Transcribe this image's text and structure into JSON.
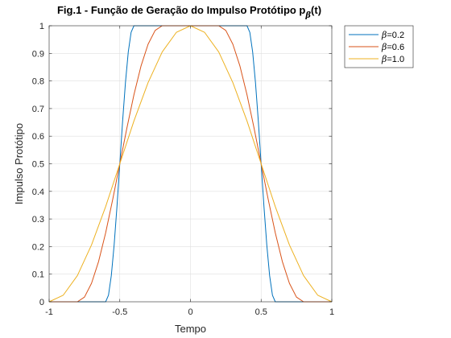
{
  "chart_data": {
    "type": "line",
    "title": "Fig.1 - Função de Geração do Impulso Protótipo p",
    "title_subscript": "β",
    "title_suffix": "(t)",
    "xlabel": "Tempo",
    "ylabel": "Impulso Protótipo",
    "xlim": [
      -1,
      1
    ],
    "ylim": [
      0,
      1
    ],
    "xticks": [
      -1,
      -0.5,
      0,
      0.5,
      1
    ],
    "xtick_labels": [
      "-1",
      "-0.5",
      "0",
      "0.5",
      "1"
    ],
    "yticks": [
      0,
      0.1,
      0.2,
      0.3,
      0.4,
      0.5,
      0.6,
      0.7,
      0.8,
      0.9,
      1
    ],
    "ytick_labels": [
      "0",
      "0.1",
      "0.2",
      "0.3",
      "0.4",
      "0.5",
      "0.6",
      "0.7",
      "0.8",
      "0.9",
      "1"
    ],
    "grid": true,
    "legend_position": "outside-top-right",
    "series": [
      {
        "name_symbol": "β",
        "name_value": "=0.2",
        "beta": 0.2,
        "color": "#0072BD",
        "x": [
          -1.0,
          -0.6,
          -0.58,
          -0.56,
          -0.54,
          -0.52,
          -0.5,
          -0.48,
          -0.46,
          -0.44,
          -0.42,
          -0.4,
          0.4,
          0.42,
          0.44,
          0.46,
          0.48,
          0.5,
          0.52,
          0.54,
          0.56,
          0.58,
          0.6,
          1.0
        ],
        "y": [
          0,
          0,
          0.024,
          0.095,
          0.206,
          0.345,
          0.5,
          0.655,
          0.794,
          0.905,
          0.976,
          1,
          1,
          0.976,
          0.905,
          0.794,
          0.655,
          0.5,
          0.345,
          0.206,
          0.095,
          0.024,
          0,
          0
        ]
      },
      {
        "name_symbol": "β",
        "name_value": "=0.6",
        "beta": 0.6,
        "color": "#D95319",
        "x": [
          -1.0,
          -0.8,
          -0.75,
          -0.7,
          -0.65,
          -0.6,
          -0.55,
          -0.5,
          -0.45,
          -0.4,
          -0.35,
          -0.3,
          -0.25,
          -0.2,
          0.2,
          0.25,
          0.3,
          0.35,
          0.4,
          0.45,
          0.5,
          0.55,
          0.6,
          0.65,
          0.7,
          0.75,
          0.8,
          1.0
        ],
        "y": [
          0,
          0,
          0.017,
          0.067,
          0.146,
          0.25,
          0.371,
          0.5,
          0.629,
          0.75,
          0.854,
          0.933,
          0.983,
          1,
          1,
          0.983,
          0.933,
          0.854,
          0.75,
          0.629,
          0.5,
          0.371,
          0.25,
          0.146,
          0.067,
          0.017,
          0,
          0
        ]
      },
      {
        "name_symbol": "β",
        "name_value": "=1.0",
        "beta": 1.0,
        "color": "#EDB120",
        "x": [
          -1.0,
          -0.9,
          -0.8,
          -0.7,
          -0.6,
          -0.5,
          -0.4,
          -0.3,
          -0.2,
          -0.1,
          0,
          0.1,
          0.2,
          0.3,
          0.4,
          0.5,
          0.6,
          0.7,
          0.8,
          0.9,
          1.0
        ],
        "y": [
          0,
          0.024,
          0.095,
          0.206,
          0.345,
          0.5,
          0.655,
          0.794,
          0.905,
          0.976,
          1,
          0.976,
          0.905,
          0.794,
          0.655,
          0.5,
          0.345,
          0.206,
          0.095,
          0.024,
          0
        ]
      }
    ]
  }
}
